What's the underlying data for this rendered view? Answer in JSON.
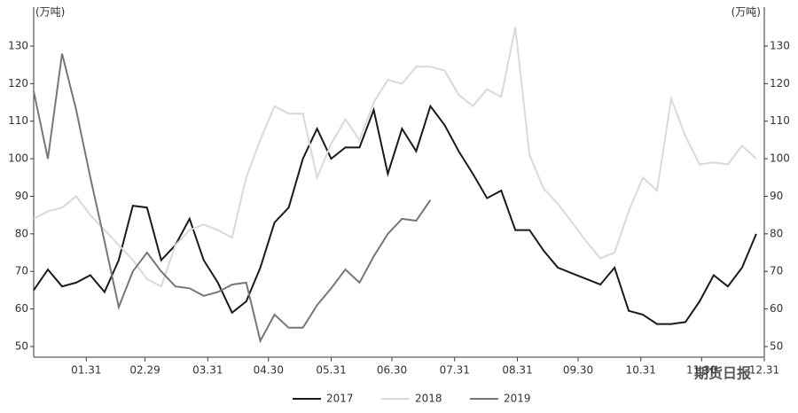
{
  "chart_data": {
    "type": "line",
    "unit_left": "(万吨)",
    "unit_right": "(万吨)",
    "watermark": "期货日报",
    "x": [
      5,
      12,
      19,
      26,
      33,
      40,
      47,
      54,
      61,
      68,
      75,
      82,
      89,
      96,
      103,
      110,
      117,
      124,
      131,
      138,
      145,
      152,
      159,
      166,
      173,
      180,
      187,
      194,
      201,
      208,
      215,
      222,
      229,
      236,
      243,
      250,
      257,
      264,
      271,
      278,
      285,
      292,
      299,
      306,
      313,
      320,
      327,
      334,
      341,
      348,
      355,
      362
    ],
    "xlim": [
      5,
      366
    ],
    "xticks": [
      {
        "value": 31,
        "label": "01.31"
      },
      {
        "value": 60,
        "label": "02.29"
      },
      {
        "value": 91,
        "label": "03.31"
      },
      {
        "value": 121,
        "label": "04.30"
      },
      {
        "value": 152,
        "label": "05.31"
      },
      {
        "value": 182,
        "label": "06.30"
      },
      {
        "value": 213,
        "label": "07.31"
      },
      {
        "value": 244,
        "label": "08.31"
      },
      {
        "value": 274,
        "label": "09.30"
      },
      {
        "value": 305,
        "label": "10.31"
      },
      {
        "value": 335,
        "label": "11.30"
      },
      {
        "value": 366,
        "label": "12.31"
      }
    ],
    "ylim": [
      47,
      140
    ],
    "yticks": [
      50,
      60,
      70,
      80,
      90,
      100,
      110,
      120,
      130
    ],
    "y2lim": [
      47,
      140
    ],
    "y2ticks": [
      50,
      60,
      70,
      80,
      90,
      100,
      110,
      120,
      130
    ],
    "series": [
      {
        "name": "2017",
        "color": "#1a1a1a",
        "values": [
          65,
          70.5,
          66,
          67,
          69,
          64.5,
          73,
          87.5,
          87,
          73,
          77,
          84,
          73,
          67,
          59,
          62,
          71,
          83,
          87,
          100,
          108,
          100,
          103,
          103,
          113,
          96,
          108,
          102,
          114,
          109,
          102,
          96,
          89.5,
          91.5,
          81,
          81,
          75.5,
          71,
          69.5,
          68,
          66.5,
          71,
          59.5,
          58.5,
          56,
          56,
          56.5,
          62,
          69,
          66,
          71,
          80
        ]
      },
      {
        "name": "2018",
        "color": "#d9d9d9",
        "values": [
          84,
          86,
          87,
          90,
          85,
          81,
          77,
          73,
          68,
          66,
          77,
          81,
          82.5,
          81,
          79,
          95,
          105,
          114,
          112,
          112,
          95,
          104,
          110.5,
          105,
          115,
          121,
          120,
          124.5,
          124.5,
          123.5,
          117,
          114,
          118.5,
          116.5,
          135,
          101,
          92,
          88,
          83,
          78,
          73.5,
          75,
          86,
          95,
          91.5,
          116,
          106,
          98.5,
          99,
          98.5,
          103.5,
          100
        ]
      },
      {
        "name": "2019",
        "color": "#777777",
        "values": [
          118,
          100,
          128,
          113,
          95,
          78,
          60.5,
          70,
          75,
          70,
          66,
          65.5,
          63.5,
          64.5,
          66.5,
          67,
          51.5,
          58.5,
          55,
          55,
          61,
          65.5,
          70.5,
          67,
          74,
          80,
          84,
          83.5,
          89,
          null,
          null,
          null,
          null,
          null,
          null,
          null,
          null,
          null,
          null,
          null,
          null,
          null,
          null,
          null,
          null,
          null,
          null,
          null,
          null,
          null,
          null,
          null
        ]
      }
    ]
  }
}
